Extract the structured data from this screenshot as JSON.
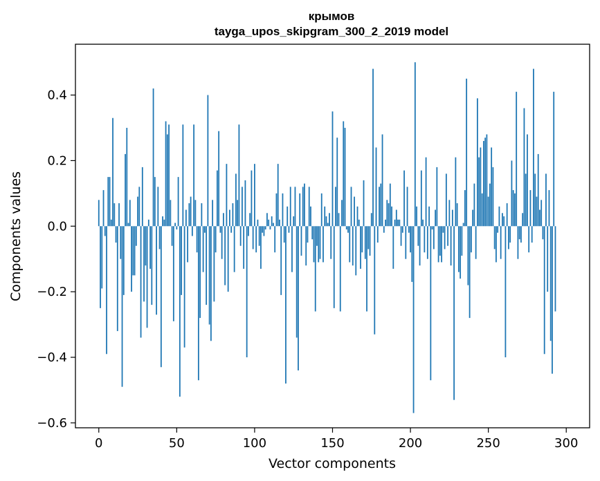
{
  "chart_data": {
    "type": "bar",
    "title": "крымов",
    "subtitle": "tayga_upos_skipgram_300_2_2019 model",
    "xlabel": "Vector components",
    "ylabel": "Components values",
    "xlim": [
      -15,
      315
    ],
    "ylim": [
      -0.615,
      0.555
    ],
    "xticks": [
      0,
      50,
      100,
      150,
      200,
      250,
      300
    ],
    "yticks": [
      -0.6,
      -0.4,
      -0.2,
      0.0,
      0.2,
      0.4
    ],
    "ytick_labels": [
      "−0.6",
      "−0.4",
      "−0.2",
      "0.0",
      "0.2",
      "0.4"
    ],
    "bar_color": "#1f77b4",
    "grid": false,
    "x": "0..299",
    "values": [
      0.08,
      -0.25,
      -0.19,
      0.11,
      -0.03,
      -0.39,
      0.15,
      0.15,
      0.02,
      0.33,
      0.07,
      -0.05,
      -0.32,
      0.07,
      -0.1,
      -0.49,
      -0.21,
      0.22,
      0.3,
      0.01,
      0.08,
      -0.2,
      -0.15,
      -0.15,
      -0.06,
      0.09,
      0.12,
      -0.34,
      0.18,
      -0.23,
      -0.12,
      -0.31,
      0.02,
      -0.13,
      -0.24,
      0.42,
      0.15,
      -0.27,
      0.12,
      -0.07,
      -0.43,
      0.03,
      0.02,
      0.32,
      0.28,
      0.31,
      0.08,
      -0.06,
      -0.29,
      0.01,
      -0.01,
      0.15,
      -0.52,
      -0.21,
      0.31,
      -0.37,
      0.05,
      -0.11,
      0.07,
      0.09,
      -0.03,
      0.31,
      0.08,
      -0.08,
      -0.47,
      -0.28,
      0.07,
      -0.14,
      -0.02,
      -0.24,
      0.4,
      -0.3,
      -0.35,
      0.08,
      -0.23,
      -0.08,
      0.17,
      0.29,
      -0.02,
      -0.1,
      0.04,
      -0.18,
      0.19,
      -0.2,
      0.05,
      -0.02,
      0.07,
      -0.14,
      0.16,
      0.08,
      0.31,
      -0.06,
      0.12,
      -0.13,
      0.14,
      -0.4,
      -0.03,
      0.04,
      0.17,
      -0.07,
      0.19,
      -0.08,
      0.02,
      -0.06,
      -0.13,
      -0.02,
      -0.03,
      -0.01,
      0.04,
      0.02,
      -0.01,
      0.03,
      0.01,
      -0.08,
      0.1,
      0.19,
      0.02,
      -0.21,
      0.1,
      -0.05,
      -0.48,
      0.06,
      -0.02,
      0.12,
      -0.14,
      0.03,
      0.12,
      -0.34,
      -0.44,
      0.1,
      -0.09,
      0.12,
      0.13,
      -0.12,
      -0.05,
      0.12,
      0.06,
      -0.04,
      -0.11,
      -0.26,
      -0.06,
      -0.11,
      -0.1,
      0.1,
      -0.11,
      0.06,
      0.03,
      0.01,
      0.04,
      -0.1,
      0.35,
      -0.25,
      0.12,
      0.27,
      0.04,
      -0.26,
      0.08,
      0.32,
      0.3,
      -0.01,
      -0.02,
      -0.11,
      0.12,
      -0.12,
      0.09,
      -0.15,
      0.06,
      0.02,
      -0.13,
      -0.08,
      0.14,
      -0.1,
      -0.26,
      -0.07,
      -0.09,
      0.04,
      0.48,
      -0.33,
      0.24,
      -0.05,
      0.12,
      0.13,
      0.28,
      -0.02,
      0.02,
      0.08,
      0.07,
      0.13,
      0.06,
      -0.13,
      0.02,
      0.05,
      0.02,
      0.02,
      -0.06,
      -0.02,
      0.17,
      -0.1,
      0.12,
      -0.02,
      -0.08,
      -0.17,
      -0.57,
      0.5,
      0.06,
      -0.06,
      -0.12,
      0.17,
      0.02,
      -0.08,
      0.21,
      -0.1,
      0.06,
      -0.47,
      -0.01,
      -0.07,
      0.05,
      0.18,
      -0.11,
      -0.09,
      -0.11,
      -0.02,
      -0.07,
      0.16,
      -0.06,
      0.08,
      -0.12,
      0.05,
      -0.53,
      0.21,
      0.07,
      -0.14,
      -0.16,
      -0.09,
      0.01,
      0.11,
      0.45,
      -0.18,
      -0.28,
      -0.08,
      0.05,
      0.13,
      -0.1,
      0.39,
      0.21,
      0.24,
      0.1,
      0.26,
      0.27,
      0.28,
      0.09,
      0.13,
      0.24,
      0.18,
      -0.07,
      -0.11,
      -0.02,
      0.06,
      -0.1,
      0.04,
      0.03,
      -0.4,
      0.07,
      -0.07,
      -0.05,
      0.2,
      0.11,
      0.1,
      0.41,
      -0.1,
      -0.04,
      -0.05,
      0.04,
      0.36,
      0.16,
      0.28,
      -0.08,
      0.11,
      -0.05,
      0.48,
      0.16,
      0.09,
      0.22,
      0.05,
      0.08,
      -0.04,
      -0.39,
      0.16,
      -0.2,
      0.11,
      -0.35,
      -0.45,
      0.41,
      -0.26
    ]
  }
}
